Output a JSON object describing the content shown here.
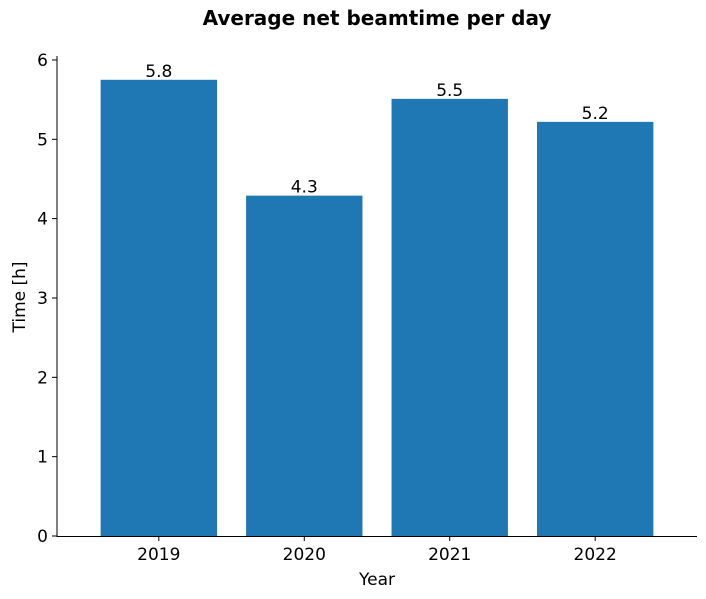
{
  "chart_data": {
    "type": "bar",
    "title": "Average net beamtime per day",
    "xlabel": "Year",
    "ylabel": "Time [h]",
    "categories": [
      "2019",
      "2020",
      "2021",
      "2022"
    ],
    "values": [
      5.75,
      4.29,
      5.51,
      5.22
    ],
    "data_labels": [
      "5.8",
      "4.3",
      "5.5",
      "5.2"
    ],
    "ylim": [
      0,
      6.05
    ],
    "yticks": [
      0,
      1,
      2,
      3,
      4,
      5,
      6
    ],
    "grid": false,
    "legend": "none",
    "bar_color": "#1f77b4"
  }
}
